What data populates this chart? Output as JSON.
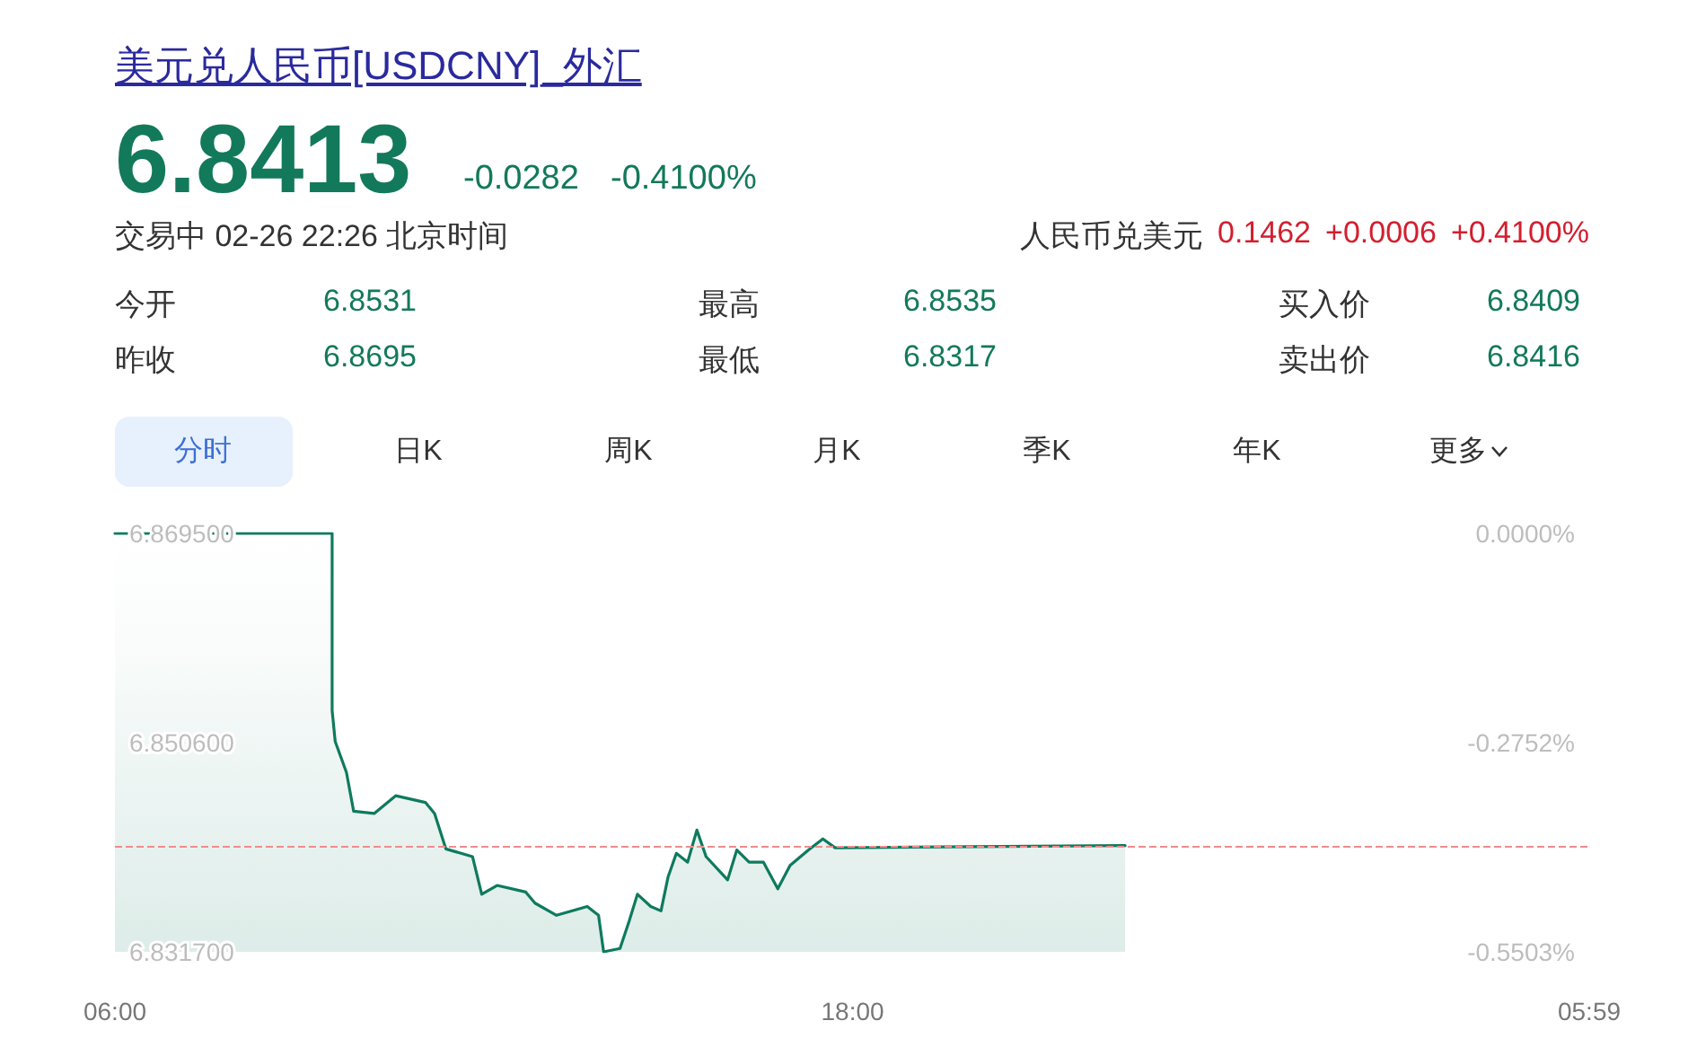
{
  "chart_data": {
    "type": "area",
    "title": "美元兑人民币[USDCNY]_外汇",
    "annotations": [
      "6.8413",
      "-0.0282",
      "-0.4100%",
      "交易中 02-26 22:26 北京时间",
      "人民币兑美元",
      "0.1462",
      "+0.0006",
      "+0.4100%",
      "今开",
      "6.8531",
      "最高",
      "6.8535",
      "买入价",
      "6.8409",
      "昨收",
      "6.8695",
      "最低",
      "6.8317",
      "卖出价",
      "6.8416",
      "分时",
      "日K",
      "周K",
      "月K",
      "季K",
      "年K",
      "更多"
    ],
    "series": [
      {
        "color": "#0e7a5e",
        "x": [
          "--02-26T06:00",
          "--02-26T09:32",
          "--02-26T09:32",
          "--02-26T09:35",
          "--02-26T09:46",
          "--02-26T09:53",
          "--02-26T10:13",
          "--02-26T10:34",
          "--02-26T11:03",
          "--02-26T11:12",
          "--02-26T11:23",
          "--02-26T11:49",
          "--02-26T11:58",
          "--02-26T12:13",
          "--02-26T12:41",
          "--02-26T12:50",
          "--02-26T13:11",
          "--02-26T13:41",
          "--02-26T13:52",
          "--02-26T13:57",
          "--02-26T14:13",
          "--02-26T14:22",
          "--02-26T14:30",
          "--02-26T14:43",
          "--02-26T14:53",
          "--02-26T15:00",
          "--02-26T15:08",
          "--02-26T15:19",
          "--02-26T15:28",
          "--02-26T15:37",
          "--02-26T15:58",
          "--02-26T16:07",
          "--02-26T16:19",
          "--02-26T16:33",
          "--02-26T16:47",
          "--02-26T16:59",
          "--02-26T17:17",
          "--02-26T17:31",
          "--02-26T17:43",
          "--02-26T22:26"
        ],
        "values": [
          6.8695,
          6.8695,
          6.8535,
          6.8507,
          6.8479,
          6.8444,
          6.8442,
          6.8458,
          6.8452,
          6.8442,
          6.841,
          6.8403,
          6.8369,
          6.8377,
          6.8371,
          6.8361,
          6.835,
          6.8358,
          6.835,
          6.8317,
          6.832,
          6.8345,
          6.8369,
          6.8358,
          6.8354,
          6.8385,
          6.8406,
          6.8398,
          6.8427,
          6.8403,
          6.8382,
          6.8409,
          6.8398,
          6.8398,
          6.8374,
          6.8395,
          6.8409,
          6.8419,
          6.8411,
          6.8413
        ]
      }
    ],
    "xlim": [
      "--02-26T06:00",
      "--02-27T05:59"
    ],
    "xticks": [
      {
        "value": "--02-26T06:00",
        "label": "06:00"
      },
      {
        "value": "--02-26T18:00",
        "label": "18:00"
      },
      {
        "value": "--02-27T05:59",
        "label": "05:59"
      }
    ],
    "ylim": [
      6.8317,
      6.8695
    ],
    "yticks": [
      {
        "value": 6.8317,
        "label": "6.831700"
      },
      {
        "value": 6.8506,
        "label": "6.850600"
      },
      {
        "value": 6.8695,
        "label": "6.869500"
      }
    ],
    "y2lim": [
      -0.5503,
      0
    ],
    "y2ticks": [
      {
        "value": -0.5503,
        "label": "-0.5503%"
      },
      {
        "value": -0.2752,
        "label": "-0.2752%"
      },
      {
        "value": 0,
        "label": "0.0000%"
      }
    ],
    "ref_lines": [
      {
        "axis": "y",
        "value": 6.8413,
        "color": "#f08c8c",
        "line_style": "dashed"
      }
    ],
    "grid": false,
    "marker": "none",
    "line_style": "solid"
  }
}
